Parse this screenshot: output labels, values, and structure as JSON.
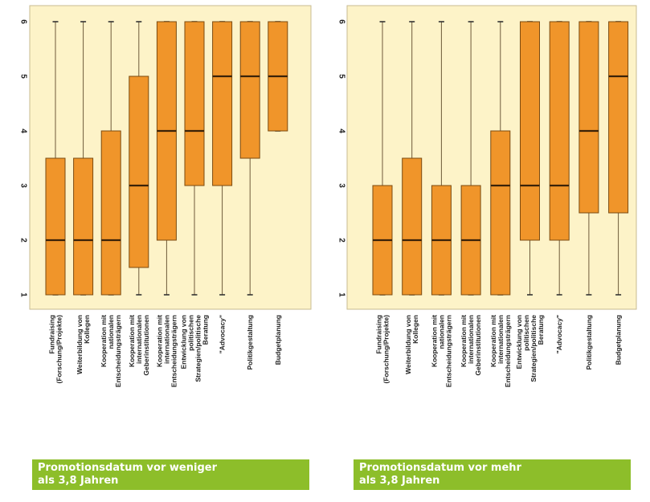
{
  "colors": {
    "plot_background": "#fdf3c8",
    "box_fill": "#f0952a",
    "box_stroke": "#7a4a10",
    "median": "#3a2208",
    "whisker": "#6e5a3a",
    "caption_background": "#8dbe2a",
    "caption_text": "#ffffff"
  },
  "chart_data": [
    {
      "type": "boxplot",
      "caption_lines": [
        "Promotionsdatum vor weniger",
        "als 3,8 Jahren"
      ],
      "ylim": [
        1,
        6
      ],
      "yticks": [
        "1",
        "2",
        "3",
        "4",
        "5",
        "6"
      ],
      "grid": false,
      "categories": [
        {
          "label_lines": [
            "Fundraising",
            "(Forschung/Projekte)"
          ],
          "min": 1,
          "q1": 1,
          "median": 2,
          "q3": 3.5,
          "max": 6
        },
        {
          "label_lines": [
            "Weiterbildung von",
            "Kollegen"
          ],
          "min": 1,
          "q1": 1,
          "median": 2,
          "q3": 3.5,
          "max": 6
        },
        {
          "label_lines": [
            "Kooperation mit",
            "nationalen",
            "Entscheidungsträgern"
          ],
          "min": 1,
          "q1": 1,
          "median": 2,
          "q3": 4,
          "max": 6
        },
        {
          "label_lines": [
            "Kooperation mit",
            "internationalen",
            "Geberinstitutionen"
          ],
          "min": 1,
          "q1": 1.5,
          "median": 3,
          "q3": 5,
          "max": 6
        },
        {
          "label_lines": [
            "Kooperation mit",
            "internationalen",
            "Entscheidungsträgern"
          ],
          "min": 1,
          "q1": 2,
          "median": 4,
          "q3": 6,
          "max": 6
        },
        {
          "label_lines": [
            "Entwicklung von",
            "politischen",
            "Strategien/politische",
            "Beratung"
          ],
          "min": 1,
          "q1": 3,
          "median": 4,
          "q3": 6,
          "max": 6
        },
        {
          "label_lines": [
            "\"Advocacy\""
          ],
          "min": 1,
          "q1": 3,
          "median": 5,
          "q3": 6,
          "max": 6
        },
        {
          "label_lines": [
            "Politikgestaltung"
          ],
          "min": 1,
          "q1": 3.5,
          "median": 5,
          "q3": 6,
          "max": 6
        },
        {
          "label_lines": [
            "Budgetplanung"
          ],
          "min": 4,
          "q1": 4,
          "median": 5,
          "q3": 6,
          "max": 6
        }
      ]
    },
    {
      "type": "boxplot",
      "caption_lines": [
        "Promotionsdatum vor mehr",
        "als 3,8 Jahren"
      ],
      "ylim": [
        1,
        6
      ],
      "yticks": [
        "1",
        "2",
        "3",
        "4",
        "5",
        "6"
      ],
      "grid": false,
      "categories": [
        {
          "label_lines": [
            "Fundraising",
            "(Forschung/Projekte)"
          ],
          "min": 1,
          "q1": 1,
          "median": 2,
          "q3": 3,
          "max": 6
        },
        {
          "label_lines": [
            "Weiterbildung von",
            "Kollegen"
          ],
          "min": 1,
          "q1": 1,
          "median": 2,
          "q3": 3.5,
          "max": 6
        },
        {
          "label_lines": [
            "Kooperation mit",
            "nationalen",
            "Entscheidungsträgern"
          ],
          "min": 1,
          "q1": 1,
          "median": 2,
          "q3": 3,
          "max": 6
        },
        {
          "label_lines": [
            "Kooperation mit",
            "internationalen",
            "Geberinstitutionen"
          ],
          "min": 1,
          "q1": 1,
          "median": 2,
          "q3": 3,
          "max": 6
        },
        {
          "label_lines": [
            "Kooperation mit",
            "internationalen",
            "Entscheidungsträgern"
          ],
          "min": 1,
          "q1": 1,
          "median": 3,
          "q3": 4,
          "max": 6
        },
        {
          "label_lines": [
            "Entwicklung von",
            "politischen",
            "Strategien/politische",
            "Beratung"
          ],
          "min": 1,
          "q1": 2,
          "median": 3,
          "q3": 6,
          "max": 6
        },
        {
          "label_lines": [
            "\"Advocacy\""
          ],
          "min": 1,
          "q1": 2,
          "median": 3,
          "q3": 6,
          "max": 6
        },
        {
          "label_lines": [
            "Politikgestaltung"
          ],
          "min": 1,
          "q1": 2.5,
          "median": 4,
          "q3": 6,
          "max": 6
        },
        {
          "label_lines": [
            "Budgetplanung"
          ],
          "min": 1,
          "q1": 2.5,
          "median": 5,
          "q3": 6,
          "max": 6
        }
      ]
    }
  ]
}
